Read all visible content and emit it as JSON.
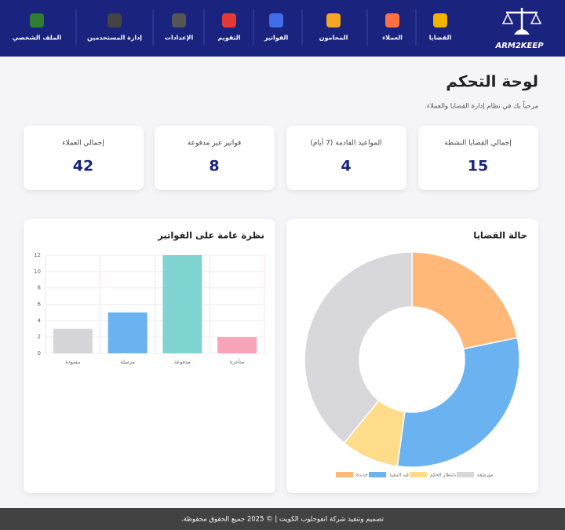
{
  "header": {
    "logo": "ARM2KEEP",
    "nav": [
      "القضايا",
      "العملاء",
      "المحامون",
      "الفواتير",
      "التقويم",
      "الإعدادات",
      "إدارة المستخدمين",
      "الملف الشخصي"
    ]
  },
  "page": {
    "title": "لوحة التحكم",
    "subtitle": "مرحباً بك في نظام إدارة القضايا والعملاء."
  },
  "stats": [
    {
      "label": "إجمالي القضايا النشطة",
      "value": 15
    },
    {
      "label": "المواعيد القادمة (7 أيام)",
      "value": 4
    },
    {
      "label": "فواتير غير مدفوعة",
      "value": 8
    },
    {
      "label": "إجمالي العملاء",
      "value": 42
    }
  ],
  "chart_data": [
    {
      "type": "pie",
      "donut": true,
      "title": "حالة القضايا",
      "categories": [
        "جديدة",
        "قيد التنفيذ",
        "بانتظار الحكم",
        "مؤرشفة"
      ],
      "values": [
        5,
        7,
        2,
        9
      ],
      "colors": [
        "#ffb878",
        "#6ab3f0",
        "#ffdc8a",
        "#d8d8dc"
      ]
    },
    {
      "type": "bar",
      "title": "نظرة عامة على الفواتير",
      "categories": [
        "مسودة",
        "مرسلة",
        "مدفوعة",
        "متأخرة"
      ],
      "values": [
        3,
        5,
        12,
        2
      ],
      "colors": [
        "#d6d6da",
        "#6ab3f0",
        "#7fd3d0",
        "#f7a3b8"
      ],
      "ylim": [
        0,
        12
      ],
      "yticks": [
        0,
        2,
        4,
        6,
        8,
        10,
        12
      ],
      "grid": true
    }
  ],
  "footer": "تصميم وتنفيذ شركة انفوجلوب الكويت | © 2025 جميع الحقوق محفوظة."
}
